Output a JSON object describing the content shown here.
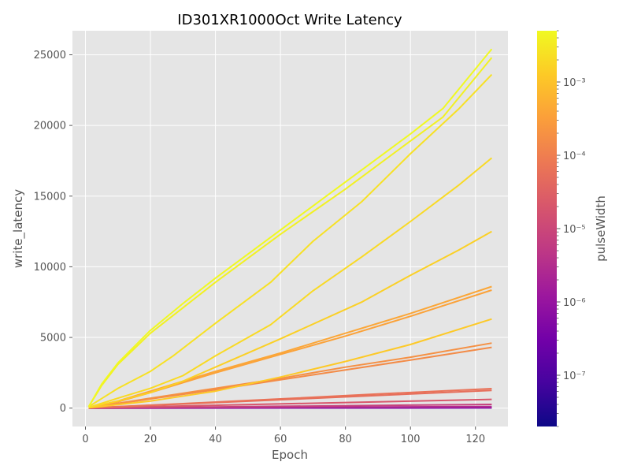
{
  "chart_data": {
    "type": "line",
    "title": "ID301XR1000Oct Write Latency",
    "xlabel": "Epoch",
    "ylabel": "write_latency",
    "xlim": [
      -4,
      130
    ],
    "ylim": [
      -1300,
      26700
    ],
    "xticks": [
      0,
      20,
      40,
      60,
      80,
      100,
      120
    ],
    "yticks": [
      0,
      5000,
      10000,
      15000,
      20000,
      25000
    ],
    "grid": true,
    "background": "#e5e5e5",
    "colorbar": {
      "label": "pulseWidth",
      "scale": "log",
      "range": [
        2e-08,
        0.005
      ],
      "ticks": [
        {
          "exp": -7,
          "label": "10⁻⁷"
        },
        {
          "exp": -6,
          "label": "10⁻⁶"
        },
        {
          "exp": -5,
          "label": "10⁻⁵"
        },
        {
          "exp": -4,
          "label": "10⁻⁴"
        },
        {
          "exp": -3,
          "label": "10⁻³"
        }
      ],
      "colormap": "plasma",
      "colormap_stops": [
        "#0d0887",
        "#46039f",
        "#7201a8",
        "#9c179e",
        "#bd3786",
        "#d8576b",
        "#ed7953",
        "#fb9f3a",
        "#fdca26",
        "#f0f921"
      ]
    },
    "series": [
      {
        "pulseWidth": 0.005,
        "x": [
          1,
          5,
          10,
          20,
          30,
          40,
          50,
          60,
          70,
          80,
          90,
          100,
          110,
          125
        ],
        "y": [
          100,
          1700,
          3200,
          5500,
          7400,
          9200,
          10900,
          12600,
          14300,
          16000,
          17700,
          19400,
          21200,
          25400
        ]
      },
      {
        "pulseWidth": 0.004,
        "x": [
          1,
          5,
          10,
          20,
          30,
          40,
          50,
          60,
          70,
          80,
          90,
          100,
          110,
          125
        ],
        "y": [
          100,
          1600,
          3100,
          5300,
          7100,
          8900,
          10600,
          12300,
          13900,
          15500,
          17200,
          18900,
          20600,
          24800
        ]
      },
      {
        "pulseWidth": 0.0025,
        "x": [
          1,
          10,
          20,
          27,
          40,
          57,
          70,
          85,
          100,
          115,
          125
        ],
        "y": [
          100,
          1400,
          2600,
          3700,
          6000,
          8900,
          11800,
          14600,
          18000,
          21200,
          23600
        ]
      },
      {
        "pulseWidth": 0.002,
        "x": [
          1,
          10,
          20,
          30,
          40,
          57,
          70,
          85,
          100,
          115,
          125
        ],
        "y": [
          50,
          700,
          1400,
          2300,
          3700,
          5900,
          8300,
          10700,
          13200,
          15800,
          17700
        ]
      },
      {
        "pulseWidth": 0.0015,
        "x": [
          1,
          10,
          20,
          30,
          40,
          60,
          85,
          100,
          115,
          125
        ],
        "y": [
          50,
          500,
          1100,
          1900,
          2900,
          4900,
          7500,
          9400,
          11200,
          12500
        ]
      },
      {
        "pulseWidth": 0.0004,
        "x": [
          1,
          10,
          20,
          30,
          40,
          60,
          80,
          100,
          125
        ],
        "y": [
          30,
          500,
          1200,
          1900,
          2600,
          3900,
          5300,
          6700,
          8600
        ]
      },
      {
        "pulseWidth": 0.00035,
        "x": [
          1,
          10,
          20,
          30,
          40,
          60,
          80,
          100,
          125
        ],
        "y": [
          30,
          450,
          1100,
          1800,
          2500,
          3800,
          5100,
          6500,
          8350
        ]
      },
      {
        "pulseWidth": 0.0012,
        "x": [
          1,
          20,
          40,
          60,
          80,
          100,
          125
        ],
        "y": [
          20,
          500,
          1200,
          2200,
          3300,
          4500,
          6300
        ]
      },
      {
        "pulseWidth": 0.00018,
        "x": [
          1,
          20,
          40,
          60,
          80,
          100,
          125
        ],
        "y": [
          10,
          700,
          1400,
          2100,
          2900,
          3600,
          4600
        ]
      },
      {
        "pulseWidth": 0.00015,
        "x": [
          1,
          20,
          40,
          60,
          80,
          100,
          125
        ],
        "y": [
          10,
          650,
          1300,
          2000,
          2700,
          3400,
          4300
        ]
      },
      {
        "pulseWidth": 6e-05,
        "x": [
          1,
          30,
          60,
          90,
          125
        ],
        "y": [
          10,
          320,
          650,
          1000,
          1380
        ]
      },
      {
        "pulseWidth": 5e-05,
        "x": [
          1,
          30,
          60,
          90,
          125
        ],
        "y": [
          10,
          290,
          590,
          900,
          1250
        ]
      },
      {
        "pulseWidth": 2e-05,
        "x": [
          1,
          125
        ],
        "y": [
          5,
          620
        ]
      },
      {
        "pulseWidth": 8e-06,
        "x": [
          1,
          125
        ],
        "y": [
          3,
          260
        ]
      },
      {
        "pulseWidth": 3e-06,
        "x": [
          1,
          125
        ],
        "y": [
          2,
          110
        ]
      },
      {
        "pulseWidth": 1e-06,
        "x": [
          1,
          125
        ],
        "y": [
          1,
          45
        ]
      },
      {
        "pulseWidth": 3e-07,
        "x": [
          1,
          125
        ],
        "y": [
          1,
          15
        ]
      }
    ]
  }
}
